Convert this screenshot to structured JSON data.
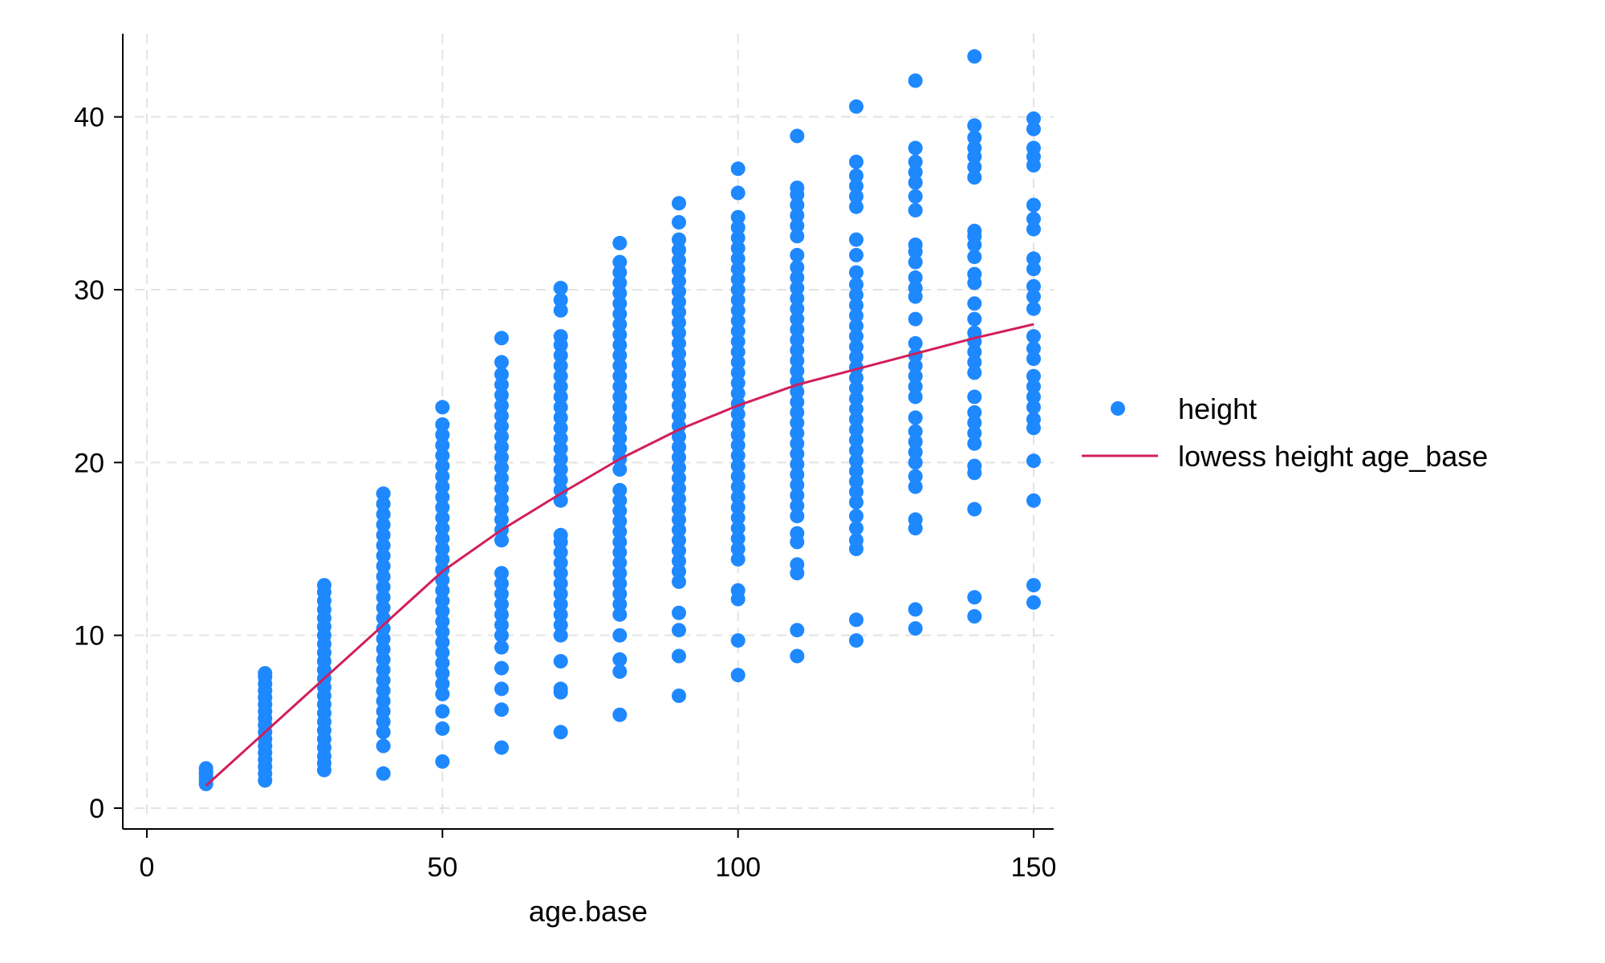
{
  "chart_data": {
    "type": "scatter",
    "title": "",
    "xlabel": "age.base",
    "ylabel": "",
    "xlim": [
      0,
      150
    ],
    "ylim": [
      0,
      45
    ],
    "xticks": [
      0,
      50,
      100,
      150
    ],
    "yticks": [
      0,
      10,
      20,
      30,
      40
    ],
    "grid": true,
    "legend_position": "right",
    "colors": {
      "points": "#1e88ff",
      "line": "#d21e5a",
      "grid": "#e3e3e3",
      "axis": "#000000"
    },
    "series": [
      {
        "name": "height",
        "kind": "points",
        "groups": [
          {
            "x": 10,
            "y": [
              1.4,
              1.6,
              1.8,
              2.0,
              2.1,
              2.3
            ]
          },
          {
            "x": 20,
            "y": [
              1.6,
              2.0,
              2.4,
              2.8,
              3.2,
              3.6,
              4.0,
              4.4,
              4.8,
              5.2,
              5.6,
              6.0,
              6.4,
              6.8,
              7.2,
              7.6,
              7.8
            ]
          },
          {
            "x": 30,
            "y": [
              2.2,
              2.6,
              3.0,
              3.5,
              4.0,
              4.5,
              5.0,
              5.5,
              6.0,
              6.5,
              7.0,
              7.5,
              8.0,
              8.5,
              9.0,
              9.5,
              10.0,
              10.5,
              11.0,
              11.5,
              12.0,
              12.5,
              12.9
            ]
          },
          {
            "x": 40,
            "y": [
              2.0,
              3.6,
              4.4,
              5.0,
              5.6,
              6.2,
              6.8,
              7.4,
              8.0,
              8.6,
              9.2,
              9.8,
              10.4,
              11.0,
              11.6,
              12.2,
              12.8,
              13.4,
              14.0,
              14.6,
              15.2,
              15.8,
              16.4,
              17.0,
              17.6,
              18.2
            ]
          },
          {
            "x": 50,
            "y": [
              2.7,
              4.6,
              5.6,
              6.6,
              7.2,
              7.8,
              8.4,
              9.0,
              9.6,
              10.2,
              10.8,
              11.4,
              12.0,
              12.6,
              13.2,
              13.8,
              14.4,
              15.0,
              15.6,
              16.2,
              16.8,
              17.4,
              18.0,
              18.6,
              19.2,
              19.8,
              20.4,
              21.0,
              21.6,
              22.2,
              23.2
            ]
          },
          {
            "x": 60,
            "y": [
              3.5,
              5.7,
              6.9,
              8.1,
              9.3,
              10.0,
              10.6,
              11.2,
              11.8,
              12.4,
              13.0,
              13.6,
              15.5,
              16.1,
              16.7,
              17.3,
              17.9,
              18.5,
              19.1,
              19.7,
              20.3,
              20.9,
              21.5,
              22.1,
              22.7,
              23.3,
              23.9,
              24.5,
              25.1,
              25.8,
              27.2
            ]
          },
          {
            "x": 70,
            "y": [
              4.4,
              6.7,
              6.9,
              8.5,
              10.0,
              10.6,
              11.2,
              11.8,
              12.4,
              13.0,
              13.6,
              14.2,
              14.8,
              15.4,
              15.8,
              17.8,
              18.4,
              19.0,
              19.6,
              20.2,
              20.8,
              21.4,
              22.0,
              22.6,
              23.2,
              23.8,
              24.4,
              25.0,
              25.6,
              26.2,
              26.8,
              27.3,
              28.8,
              29.4,
              30.1
            ]
          },
          {
            "x": 80,
            "y": [
              5.4,
              7.9,
              8.6,
              10.0,
              11.2,
              11.8,
              12.4,
              13.0,
              13.6,
              14.2,
              14.8,
              15.4,
              16.0,
              16.6,
              17.2,
              17.8,
              18.4,
              19.6,
              20.2,
              20.8,
              21.4,
              22.0,
              22.6,
              23.2,
              23.8,
              24.4,
              25.0,
              25.6,
              26.2,
              26.8,
              27.4,
              28.0,
              28.6,
              29.2,
              29.8,
              30.4,
              31.0,
              31.6,
              32.7
            ]
          },
          {
            "x": 90,
            "y": [
              6.5,
              8.8,
              10.3,
              11.3,
              13.1,
              13.7,
              14.3,
              14.9,
              15.5,
              16.1,
              16.7,
              17.3,
              17.9,
              18.5,
              19.1,
              19.7,
              20.3,
              20.9,
              21.5,
              22.1,
              22.7,
              23.3,
              23.9,
              24.5,
              25.1,
              25.7,
              26.3,
              26.9,
              27.5,
              28.1,
              28.7,
              29.3,
              29.9,
              30.5,
              31.1,
              31.7,
              32.3,
              32.9,
              33.9,
              35.0
            ]
          },
          {
            "x": 100,
            "y": [
              7.7,
              9.7,
              12.1,
              12.6,
              14.4,
              15.0,
              15.6,
              16.2,
              16.8,
              17.4,
              18.0,
              18.6,
              19.2,
              19.8,
              20.4,
              21.0,
              21.6,
              22.2,
              22.8,
              23.4,
              24.0,
              24.6,
              25.2,
              25.8,
              26.4,
              27.0,
              27.6,
              28.2,
              28.8,
              29.4,
              30.0,
              30.6,
              31.2,
              31.8,
              32.4,
              33.0,
              33.6,
              34.2,
              35.6,
              37.0
            ]
          },
          {
            "x": 110,
            "y": [
              8.8,
              10.3,
              13.6,
              14.1,
              15.4,
              15.9,
              16.9,
              17.5,
              18.1,
              18.7,
              19.3,
              19.9,
              20.5,
              21.1,
              21.7,
              22.3,
              22.9,
              23.5,
              24.1,
              24.7,
              25.3,
              25.9,
              26.5,
              27.1,
              27.7,
              28.3,
              28.9,
              29.5,
              30.1,
              30.7,
              31.3,
              32.0,
              33.1,
              33.7,
              34.3,
              34.9,
              35.5,
              35.9,
              38.9
            ]
          },
          {
            "x": 120,
            "y": [
              9.7,
              10.9,
              15.0,
              15.5,
              16.2,
              16.9,
              17.7,
              18.3,
              18.9,
              19.5,
              20.1,
              20.7,
              21.3,
              21.9,
              22.5,
              23.1,
              23.7,
              24.3,
              24.9,
              25.5,
              26.1,
              26.7,
              27.3,
              27.9,
              28.5,
              29.1,
              29.7,
              30.3,
              31.0,
              32.0,
              32.9,
              34.8,
              35.4,
              36.0,
              36.6,
              37.4,
              40.6
            ]
          },
          {
            "x": 130,
            "y": [
              10.4,
              11.5,
              16.2,
              16.7,
              18.6,
              19.2,
              20.0,
              20.6,
              21.2,
              21.8,
              22.6,
              23.8,
              24.4,
              25.0,
              25.6,
              26.2,
              26.9,
              28.3,
              29.6,
              30.1,
              30.7,
              31.6,
              32.2,
              32.6,
              34.6,
              35.4,
              36.2,
              36.8,
              37.4,
              38.2,
              42.1
            ]
          },
          {
            "x": 140,
            "y": [
              11.1,
              12.2,
              17.3,
              19.4,
              19.8,
              21.1,
              21.7,
              22.3,
              22.9,
              23.8,
              25.2,
              25.8,
              26.4,
              27.0,
              27.5,
              28.3,
              29.2,
              30.4,
              30.9,
              31.9,
              32.6,
              33.1,
              33.4,
              36.5,
              37.1,
              37.7,
              38.2,
              38.8,
              39.5,
              43.5
            ]
          },
          {
            "x": 150,
            "y": [
              11.9,
              12.9,
              17.8,
              20.1,
              22.0,
              22.5,
              23.2,
              23.8,
              24.4,
              25.0,
              26.0,
              26.6,
              27.3,
              28.9,
              29.6,
              30.2,
              31.2,
              31.8,
              33.5,
              34.1,
              34.9,
              37.2,
              37.7,
              38.2,
              39.3,
              39.9
            ]
          }
        ]
      },
      {
        "name": "lowess height age_base",
        "kind": "line",
        "x": [
          10,
          20,
          30,
          40,
          50,
          60,
          70,
          80,
          90,
          100,
          110,
          120,
          130,
          140,
          150
        ],
        "y": [
          1.3,
          4.4,
          7.5,
          10.6,
          13.7,
          16.1,
          18.2,
          20.2,
          21.9,
          23.3,
          24.5,
          25.4,
          26.3,
          27.2,
          28.0
        ]
      }
    ]
  }
}
